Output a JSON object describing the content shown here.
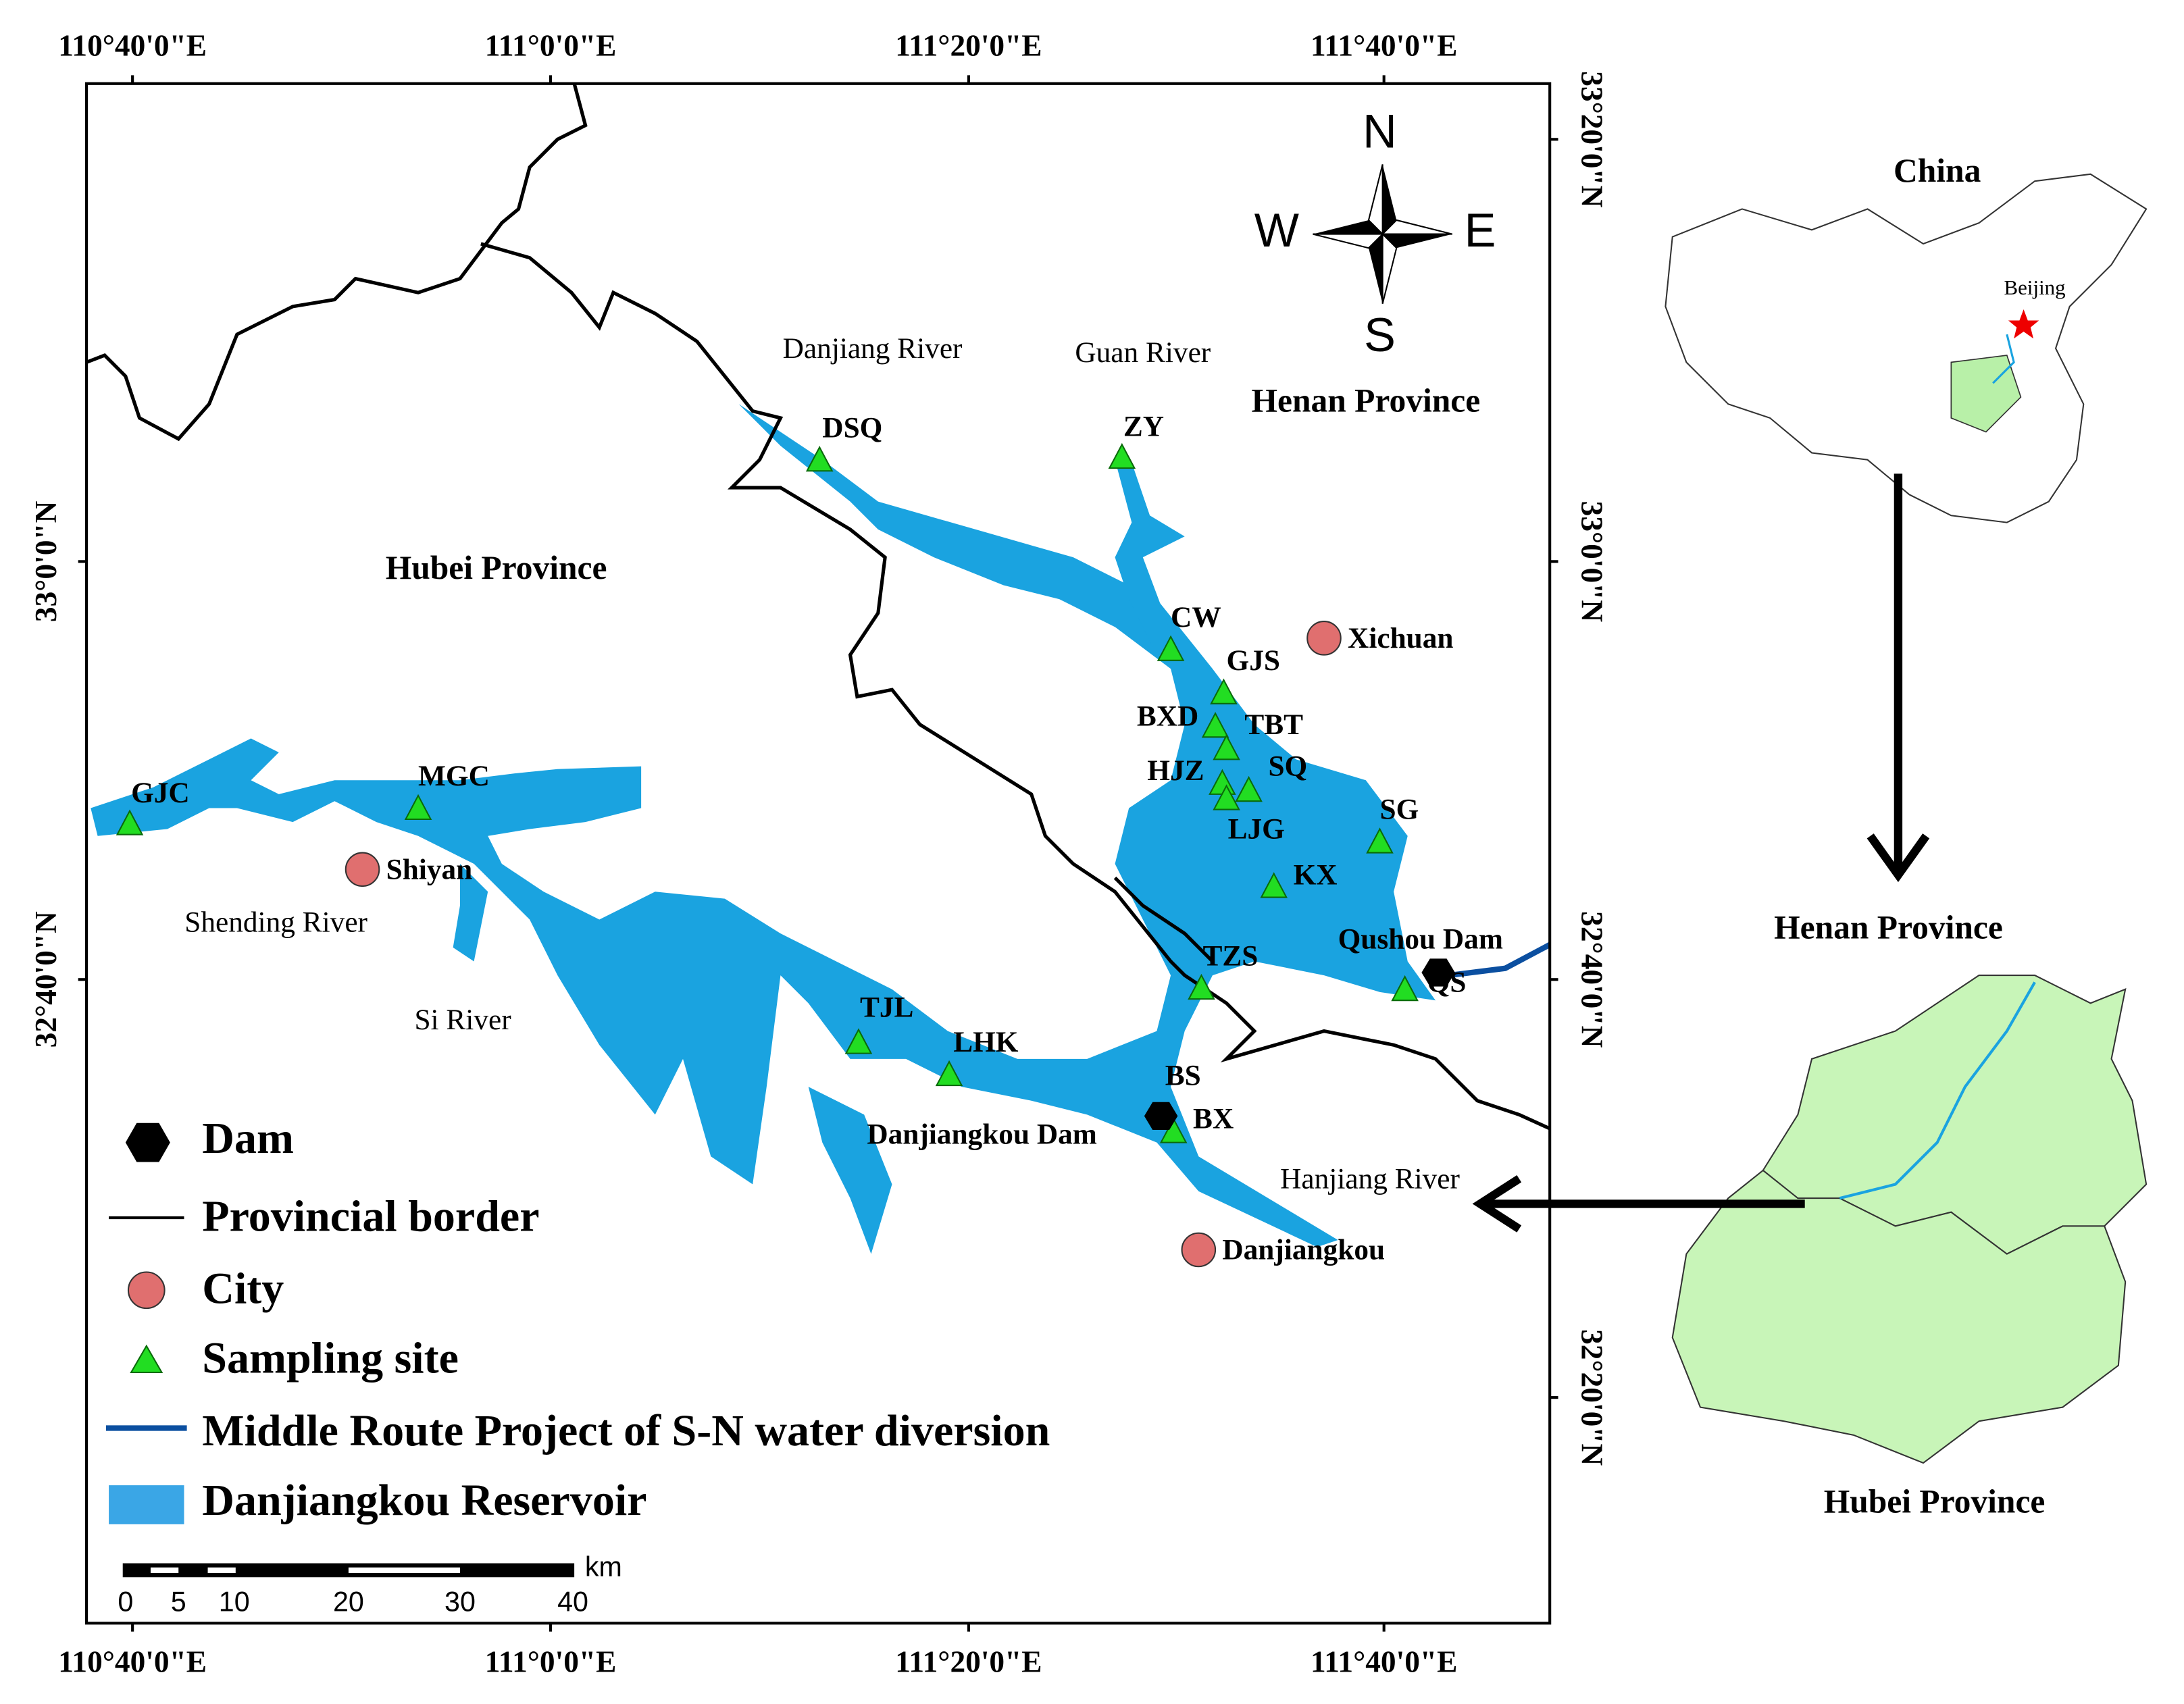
{
  "axes": {
    "top": [
      "110°40'0\"E",
      "111°0'0\"E",
      "111°20'0\"E",
      "111°40'0\"E"
    ],
    "bottom": [
      "110°40'0\"E",
      "111°0'0\"E",
      "111°20'0\"E",
      "111°40'0\"E"
    ],
    "left": [
      "33°0'0\"N",
      "32°40'0\"N"
    ],
    "right": [
      "33°20'0\"N",
      "33°0'0\"N",
      "32°40'0\"N",
      "32°20'0\"N"
    ]
  },
  "compass": {
    "n": "N",
    "s": "S",
    "w": "W",
    "e": "E"
  },
  "regions": [
    "Henan Province",
    "Hubei Province"
  ],
  "rivers": [
    "Danjiang River",
    "Guan River",
    "Shending River",
    "Si River",
    "Hanjiang River"
  ],
  "sites": [
    "DSQ",
    "ZY",
    "CW",
    "GJS",
    "BXD",
    "TBT",
    "HJZ",
    "SQ",
    "LJG",
    "SG",
    "KX",
    "TZS",
    "QS",
    "TJL",
    "LHK",
    "BS",
    "BX",
    "GJC",
    "MGC"
  ],
  "cities": [
    "Xichuan",
    "Shiyan",
    "Danjiangkou"
  ],
  "dams": [
    "Qushou Dam",
    "Danjiangkou Dam"
  ],
  "legend": [
    "Dam",
    "Provincial border",
    "City",
    "Sampling site",
    "Middle Route Project of S-N water diversion",
    "Danjiangkou Reservoir"
  ],
  "scale_bar": {
    "labels": [
      "0",
      "5",
      "10",
      "20",
      "30",
      "40"
    ],
    "unit": "km"
  },
  "inset": {
    "china": "China",
    "beijing": "Beijing",
    "henan": "Henan Province",
    "hubei": "Hubei Province"
  }
}
